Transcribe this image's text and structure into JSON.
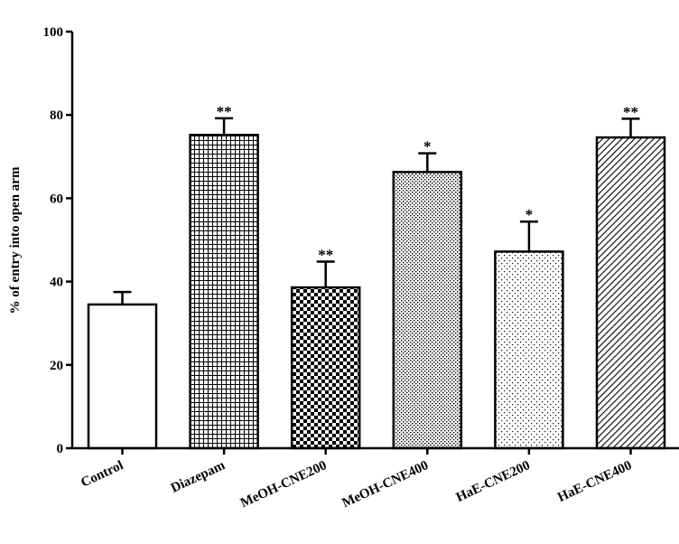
{
  "chart_data": {
    "type": "bar",
    "categories": [
      "Control",
      "Diazepam",
      "MeOH-CNE200",
      "MeOH-CNE400",
      "HaE-CNE200",
      "HaE-CNE400"
    ],
    "values": [
      34.5,
      75.2,
      38.6,
      66.3,
      47.2,
      74.6
    ],
    "errors": [
      3.0,
      4.0,
      6.2,
      4.5,
      7.2,
      4.5
    ],
    "significance": [
      "",
      "**",
      "**",
      "*",
      "*",
      "**"
    ],
    "patterns": [
      "none",
      "grid",
      "checker",
      "dots-dense",
      "dots-sparse",
      "diagonal"
    ],
    "ylabel": "% of entry into open arm",
    "ylim": [
      0,
      100
    ],
    "yticks": [
      0,
      20,
      40,
      60,
      80,
      100
    ],
    "bar_fill": "#ffffff",
    "ink_color": "#000000",
    "grid": false,
    "legend": "none"
  }
}
